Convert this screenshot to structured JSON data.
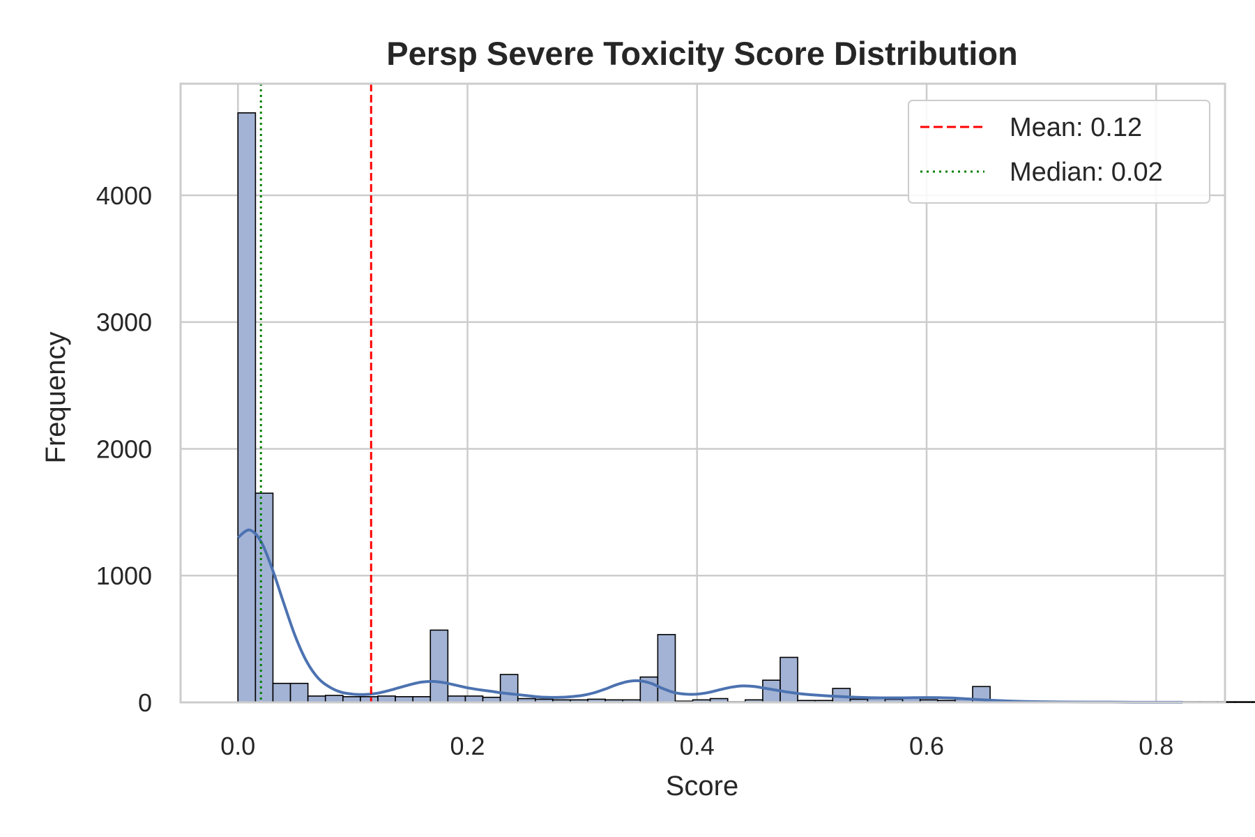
{
  "chart_data": {
    "type": "bar",
    "title": "Persp Severe Toxicity Score Distribution",
    "xlabel": "Score",
    "ylabel": "Frequency",
    "xlim": [
      -0.05,
      0.86
    ],
    "ylim": [
      0,
      4880
    ],
    "xticks": [
      0.0,
      0.2,
      0.4,
      0.6,
      0.8
    ],
    "xtick_labels": [
      "0.0",
      "0.2",
      "0.4",
      "0.6",
      "0.8"
    ],
    "yticks": [
      0,
      1000,
      2000,
      3000,
      4000
    ],
    "ytick_labels": [
      "0",
      "1000",
      "2000",
      "3000",
      "4000"
    ],
    "grid": true,
    "legend_position": "top-right",
    "bins": {
      "start": 0.0,
      "width": 0.01524,
      "counts": [
        4650,
        1650,
        150,
        150,
        50,
        55,
        45,
        45,
        50,
        45,
        45,
        570,
        50,
        50,
        40,
        220,
        30,
        25,
        20,
        20,
        25,
        20,
        20,
        200,
        535,
        10,
        20,
        30,
        5,
        20,
        175,
        355,
        15,
        15,
        110,
        25,
        30,
        25,
        40,
        20,
        15,
        25,
        125,
        10,
        10,
        5,
        5,
        5,
        5,
        5,
        5,
        5,
        5,
        5,
        5,
        5,
        5,
        5,
        5,
        5,
        5,
        5,
        5,
        5,
        5,
        5,
        5,
        5,
        5,
        5,
        5,
        5,
        5,
        5,
        5,
        5,
        5,
        5
      ]
    },
    "kde": {
      "x": [
        0.0,
        0.01,
        0.02,
        0.03,
        0.04,
        0.05,
        0.06,
        0.07,
        0.08,
        0.09,
        0.1,
        0.11,
        0.12,
        0.13,
        0.14,
        0.15,
        0.16,
        0.17,
        0.18,
        0.19,
        0.2,
        0.21,
        0.22,
        0.23,
        0.24,
        0.25,
        0.26,
        0.27,
        0.28,
        0.29,
        0.3,
        0.31,
        0.32,
        0.33,
        0.34,
        0.35,
        0.36,
        0.37,
        0.38,
        0.39,
        0.4,
        0.41,
        0.42,
        0.43,
        0.44,
        0.45,
        0.46,
        0.47,
        0.48,
        0.49,
        0.5,
        0.52,
        0.54,
        0.56,
        0.58,
        0.6,
        0.62,
        0.64,
        0.66,
        0.68,
        0.7,
        0.72,
        0.74,
        0.76,
        0.78,
        0.8,
        0.823
      ],
      "y": [
        1300,
        1360,
        1270,
        1050,
        780,
        520,
        320,
        190,
        120,
        80,
        65,
        62,
        70,
        90,
        115,
        140,
        160,
        165,
        155,
        135,
        115,
        100,
        88,
        75,
        65,
        55,
        45,
        40,
        40,
        45,
        55,
        75,
        105,
        140,
        165,
        170,
        150,
        110,
        78,
        65,
        65,
        78,
        100,
        120,
        130,
        125,
        110,
        95,
        80,
        68,
        60,
        48,
        40,
        36,
        36,
        38,
        35,
        25,
        15,
        8,
        5,
        3,
        2,
        2,
        1,
        1,
        1
      ]
    },
    "series": [
      {
        "name": "Mean: 0.12",
        "value": 0.116,
        "color": "#ff0000",
        "style": "dashed"
      },
      {
        "name": "Median: 0.02",
        "value": 0.02,
        "color": "#008000",
        "style": "dotted"
      }
    ],
    "colors": {
      "bar_fill": "#a3b3d5",
      "bar_edge": "#000000",
      "kde_line": "#4c72b0",
      "grid": "#cccccc",
      "frame": "#cccccc"
    }
  }
}
